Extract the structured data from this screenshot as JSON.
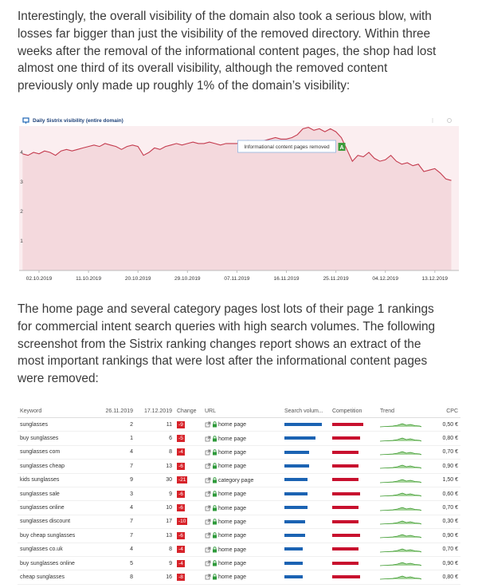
{
  "paragraphs": [
    [
      "Interestingly, the overall visibility of the domain also took a serious blow, with",
      "losses far bigger than just the visibility of the removed directory. Within three",
      "weeks after the removal of the informational content pages, the shop had lost",
      "almost one third of its overall visibility, although the removed content",
      "previously only made up roughly 1% of the domain’s visibility:"
    ],
    [
      "The home page and several category pages lost lots of their page 1 rankings",
      "for commercial intent search queries with high search volumes. The following",
      "screenshot from the Sistrix ranking changes report shows an extract of the",
      "most important rankings that were lost after the informational content pages",
      "were removed:"
    ]
  ],
  "chart_data": {
    "type": "area",
    "title": "Daily Sistrix visibility (entire domain)",
    "color": "#c43b4e",
    "fill": "#f4d9dd",
    "x": [
      "29.09.2019",
      "30.09.2019",
      "01.10.2019",
      "02.10.2019",
      "03.10.2019",
      "04.10.2019",
      "05.10.2019",
      "06.10.2019",
      "07.10.2019",
      "08.10.2019",
      "09.10.2019",
      "10.10.2019",
      "11.10.2019",
      "12.10.2019",
      "13.10.2019",
      "14.10.2019",
      "15.10.2019",
      "16.10.2019",
      "17.10.2019",
      "18.10.2019",
      "19.10.2019",
      "20.10.2019",
      "21.10.2019",
      "22.10.2019",
      "23.10.2019",
      "24.10.2019",
      "25.10.2019",
      "26.10.2019",
      "27.10.2019",
      "28.10.2019",
      "29.10.2019",
      "30.10.2019",
      "31.10.2019",
      "01.11.2019",
      "02.11.2019",
      "03.11.2019",
      "04.11.2019",
      "05.11.2019",
      "06.11.2019",
      "07.11.2019",
      "08.11.2019",
      "09.11.2019",
      "10.11.2019",
      "11.11.2019",
      "12.11.2019",
      "13.11.2019",
      "14.11.2019",
      "15.11.2019",
      "16.11.2019",
      "17.11.2019",
      "18.11.2019",
      "19.11.2019",
      "20.11.2019",
      "21.11.2019",
      "22.11.2019",
      "23.11.2019",
      "24.11.2019",
      "25.11.2019",
      "26.11.2019",
      "27.11.2019",
      "28.11.2019",
      "29.11.2019",
      "30.11.2019",
      "01.12.2019",
      "02.12.2019",
      "03.12.2019",
      "04.12.2019",
      "05.12.2019",
      "06.12.2019",
      "07.12.2019",
      "08.12.2019",
      "09.12.2019",
      "10.12.2019",
      "11.12.2019",
      "12.12.2019",
      "13.12.2019",
      "14.12.2019",
      "15.12.2019",
      "16.12.2019"
    ],
    "values": [
      3.95,
      3.9,
      4.0,
      3.95,
      4.05,
      4.0,
      3.9,
      4.05,
      4.1,
      4.05,
      4.1,
      4.15,
      4.2,
      4.25,
      4.2,
      4.3,
      4.25,
      4.2,
      4.1,
      4.2,
      4.25,
      4.2,
      3.9,
      4.0,
      4.15,
      4.1,
      4.2,
      4.25,
      4.3,
      4.25,
      4.3,
      4.35,
      4.3,
      4.3,
      4.35,
      4.3,
      4.25,
      4.3,
      4.3,
      4.3,
      4.35,
      4.4,
      4.35,
      4.3,
      4.4,
      4.45,
      4.5,
      4.45,
      4.45,
      4.5,
      4.6,
      4.8,
      4.85,
      4.75,
      4.8,
      4.7,
      4.8,
      4.7,
      4.5,
      4.1,
      3.7,
      3.9,
      3.85,
      4.0,
      3.8,
      3.7,
      3.75,
      3.9,
      3.7,
      3.6,
      3.65,
      3.55,
      3.6,
      3.35,
      3.4,
      3.45,
      3.3,
      3.1,
      3.05
    ],
    "xticks": [
      "02.10.2019",
      "11.10.2019",
      "20.10.2019",
      "29.10.2019",
      "07.11.2019",
      "16.11.2019",
      "25.11.2019",
      "04.12.2019",
      "13.12.2019"
    ],
    "ylim": [
      0,
      5
    ],
    "yticks": [
      1,
      2,
      3,
      4
    ],
    "grid": false,
    "annotation": {
      "text": "Informational content pages removed",
      "marker": "A",
      "x": "26.11.2019"
    }
  },
  "table": {
    "header": [
      "Keyword",
      "26.11.2019",
      "17.12.2019",
      "Change",
      "URL",
      "Search volum...",
      "Competition",
      "Trend",
      "CPC"
    ],
    "rows": [
      [
        "sunglasses",
        2,
        11,
        -9,
        "home page",
        0.9,
        0.78,
        "0,50 €"
      ],
      [
        "buy sunglasses",
        1,
        6,
        -5,
        "home page",
        0.75,
        0.7,
        "0,80 €"
      ],
      [
        "sunglasses com",
        4,
        8,
        -4,
        "home page",
        0.6,
        0.65,
        "0,70 €"
      ],
      [
        "sunglasses cheap",
        7,
        13,
        -6,
        "home page",
        0.6,
        0.65,
        "0,90 €"
      ],
      [
        "kids sunglasses",
        9,
        30,
        -21,
        "category page",
        0.55,
        0.65,
        "1,50 €"
      ],
      [
        "sunglasses sale",
        3,
        9,
        -6,
        "home page",
        0.55,
        0.7,
        "0,60 €"
      ],
      [
        "sunglasses online",
        4,
        10,
        -6,
        "home page",
        0.55,
        0.65,
        "0,70 €"
      ],
      [
        "sunglasses discount",
        7,
        17,
        -10,
        "home page",
        0.5,
        0.65,
        "0,30 €"
      ],
      [
        "buy cheap sunglasses",
        7,
        13,
        -6,
        "home page",
        0.5,
        0.7,
        "0,90 €"
      ],
      [
        "sunglasses co.uk",
        4,
        8,
        -4,
        "home page",
        0.45,
        0.65,
        "0,70 €"
      ],
      [
        "buy sunglasses online",
        5,
        9,
        -4,
        "home page",
        0.45,
        0.65,
        "0,90 €"
      ],
      [
        "cheap sunglasses",
        8,
        16,
        -8,
        "home page",
        0.45,
        0.7,
        "0,80 €"
      ]
    ]
  }
}
